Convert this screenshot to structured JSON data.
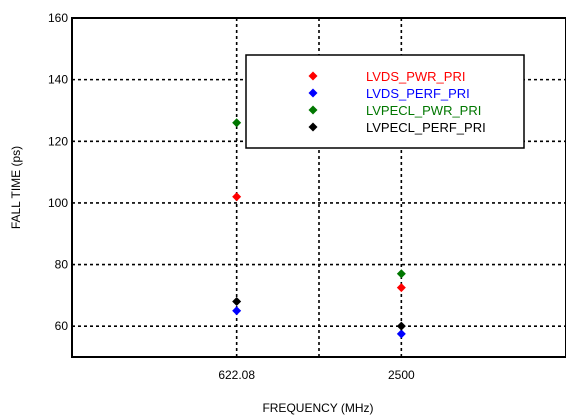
{
  "chart_data": {
    "type": "scatter",
    "title": "",
    "xlabel": "FREQUENCY (MHz)",
    "ylabel": "FALL TIME (ps)",
    "categories": [
      "622.08",
      "2500"
    ],
    "xlim": [
      0,
      3
    ],
    "x_positions": [
      1,
      2
    ],
    "ylim": [
      50,
      160
    ],
    "yticks": [
      60,
      80,
      100,
      120,
      140,
      160
    ],
    "grid": true,
    "legend_position": "top-right",
    "series": [
      {
        "name": "LVDS_PWR_PRI",
        "color": "#ff0000",
        "values": [
          102,
          72.5
        ]
      },
      {
        "name": "LVDS_PERF_PRI",
        "color": "#0000ff",
        "values": [
          65,
          57.5
        ]
      },
      {
        "name": "LVPECL_PWR_PRI",
        "color": "#007700",
        "values": [
          126,
          77
        ]
      },
      {
        "name": "LVPECL_PERF_PRI",
        "color": "#000000",
        "values": [
          68,
          60
        ]
      }
    ]
  }
}
